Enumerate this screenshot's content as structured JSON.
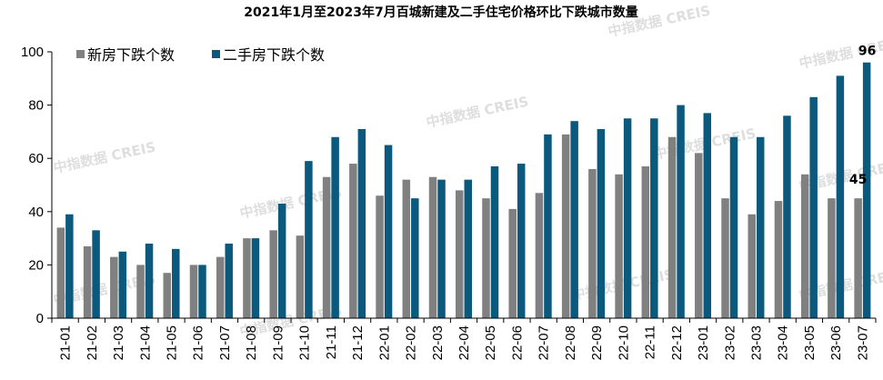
{
  "chart_data": {
    "type": "bar",
    "title": "2021年1月至2023年7月百城新建及二手住宅价格环比下跌城市数量",
    "xlabel": "",
    "ylabel": "",
    "ylim": [
      0,
      100
    ],
    "yticks": [
      0,
      20,
      40,
      60,
      80,
      100
    ],
    "categories": [
      "21-01",
      "21-02",
      "21-03",
      "21-04",
      "21-05",
      "21-06",
      "21-07",
      "21-08",
      "21-09",
      "21-10",
      "21-11",
      "21-12",
      "22-01",
      "22-02",
      "22-03",
      "22-04",
      "22-05",
      "22-06",
      "22-07",
      "22-08",
      "22-09",
      "22-10",
      "22-11",
      "22-12",
      "23-01",
      "23-02",
      "23-03",
      "23-04",
      "23-05",
      "23-06",
      "23-07"
    ],
    "series": [
      {
        "name": "新房下跌个数",
        "color": "#808080",
        "values": [
          34,
          27,
          23,
          20,
          17,
          20,
          23,
          30,
          33,
          31,
          53,
          58,
          46,
          52,
          53,
          48,
          45,
          41,
          47,
          69,
          56,
          54,
          57,
          68,
          62,
          45,
          39,
          44,
          54,
          45,
          45
        ]
      },
      {
        "name": "二手房下跌个数",
        "color": "#0b5a7e",
        "values": [
          39,
          33,
          25,
          28,
          26,
          20,
          28,
          30,
          43,
          59,
          68,
          71,
          65,
          45,
          52,
          52,
          57,
          58,
          69,
          74,
          71,
          75,
          75,
          80,
          77,
          68,
          68,
          76,
          83,
          91,
          96
        ]
      }
    ],
    "data_labels": [
      {
        "series": "新房下跌个数",
        "category": "23-07",
        "text": "45"
      },
      {
        "series": "二手房下跌个数",
        "category": "23-07",
        "text": "96"
      }
    ],
    "legend_position": "top-left",
    "grid": false
  },
  "watermark": {
    "text": "中指数据 CREIS"
  }
}
